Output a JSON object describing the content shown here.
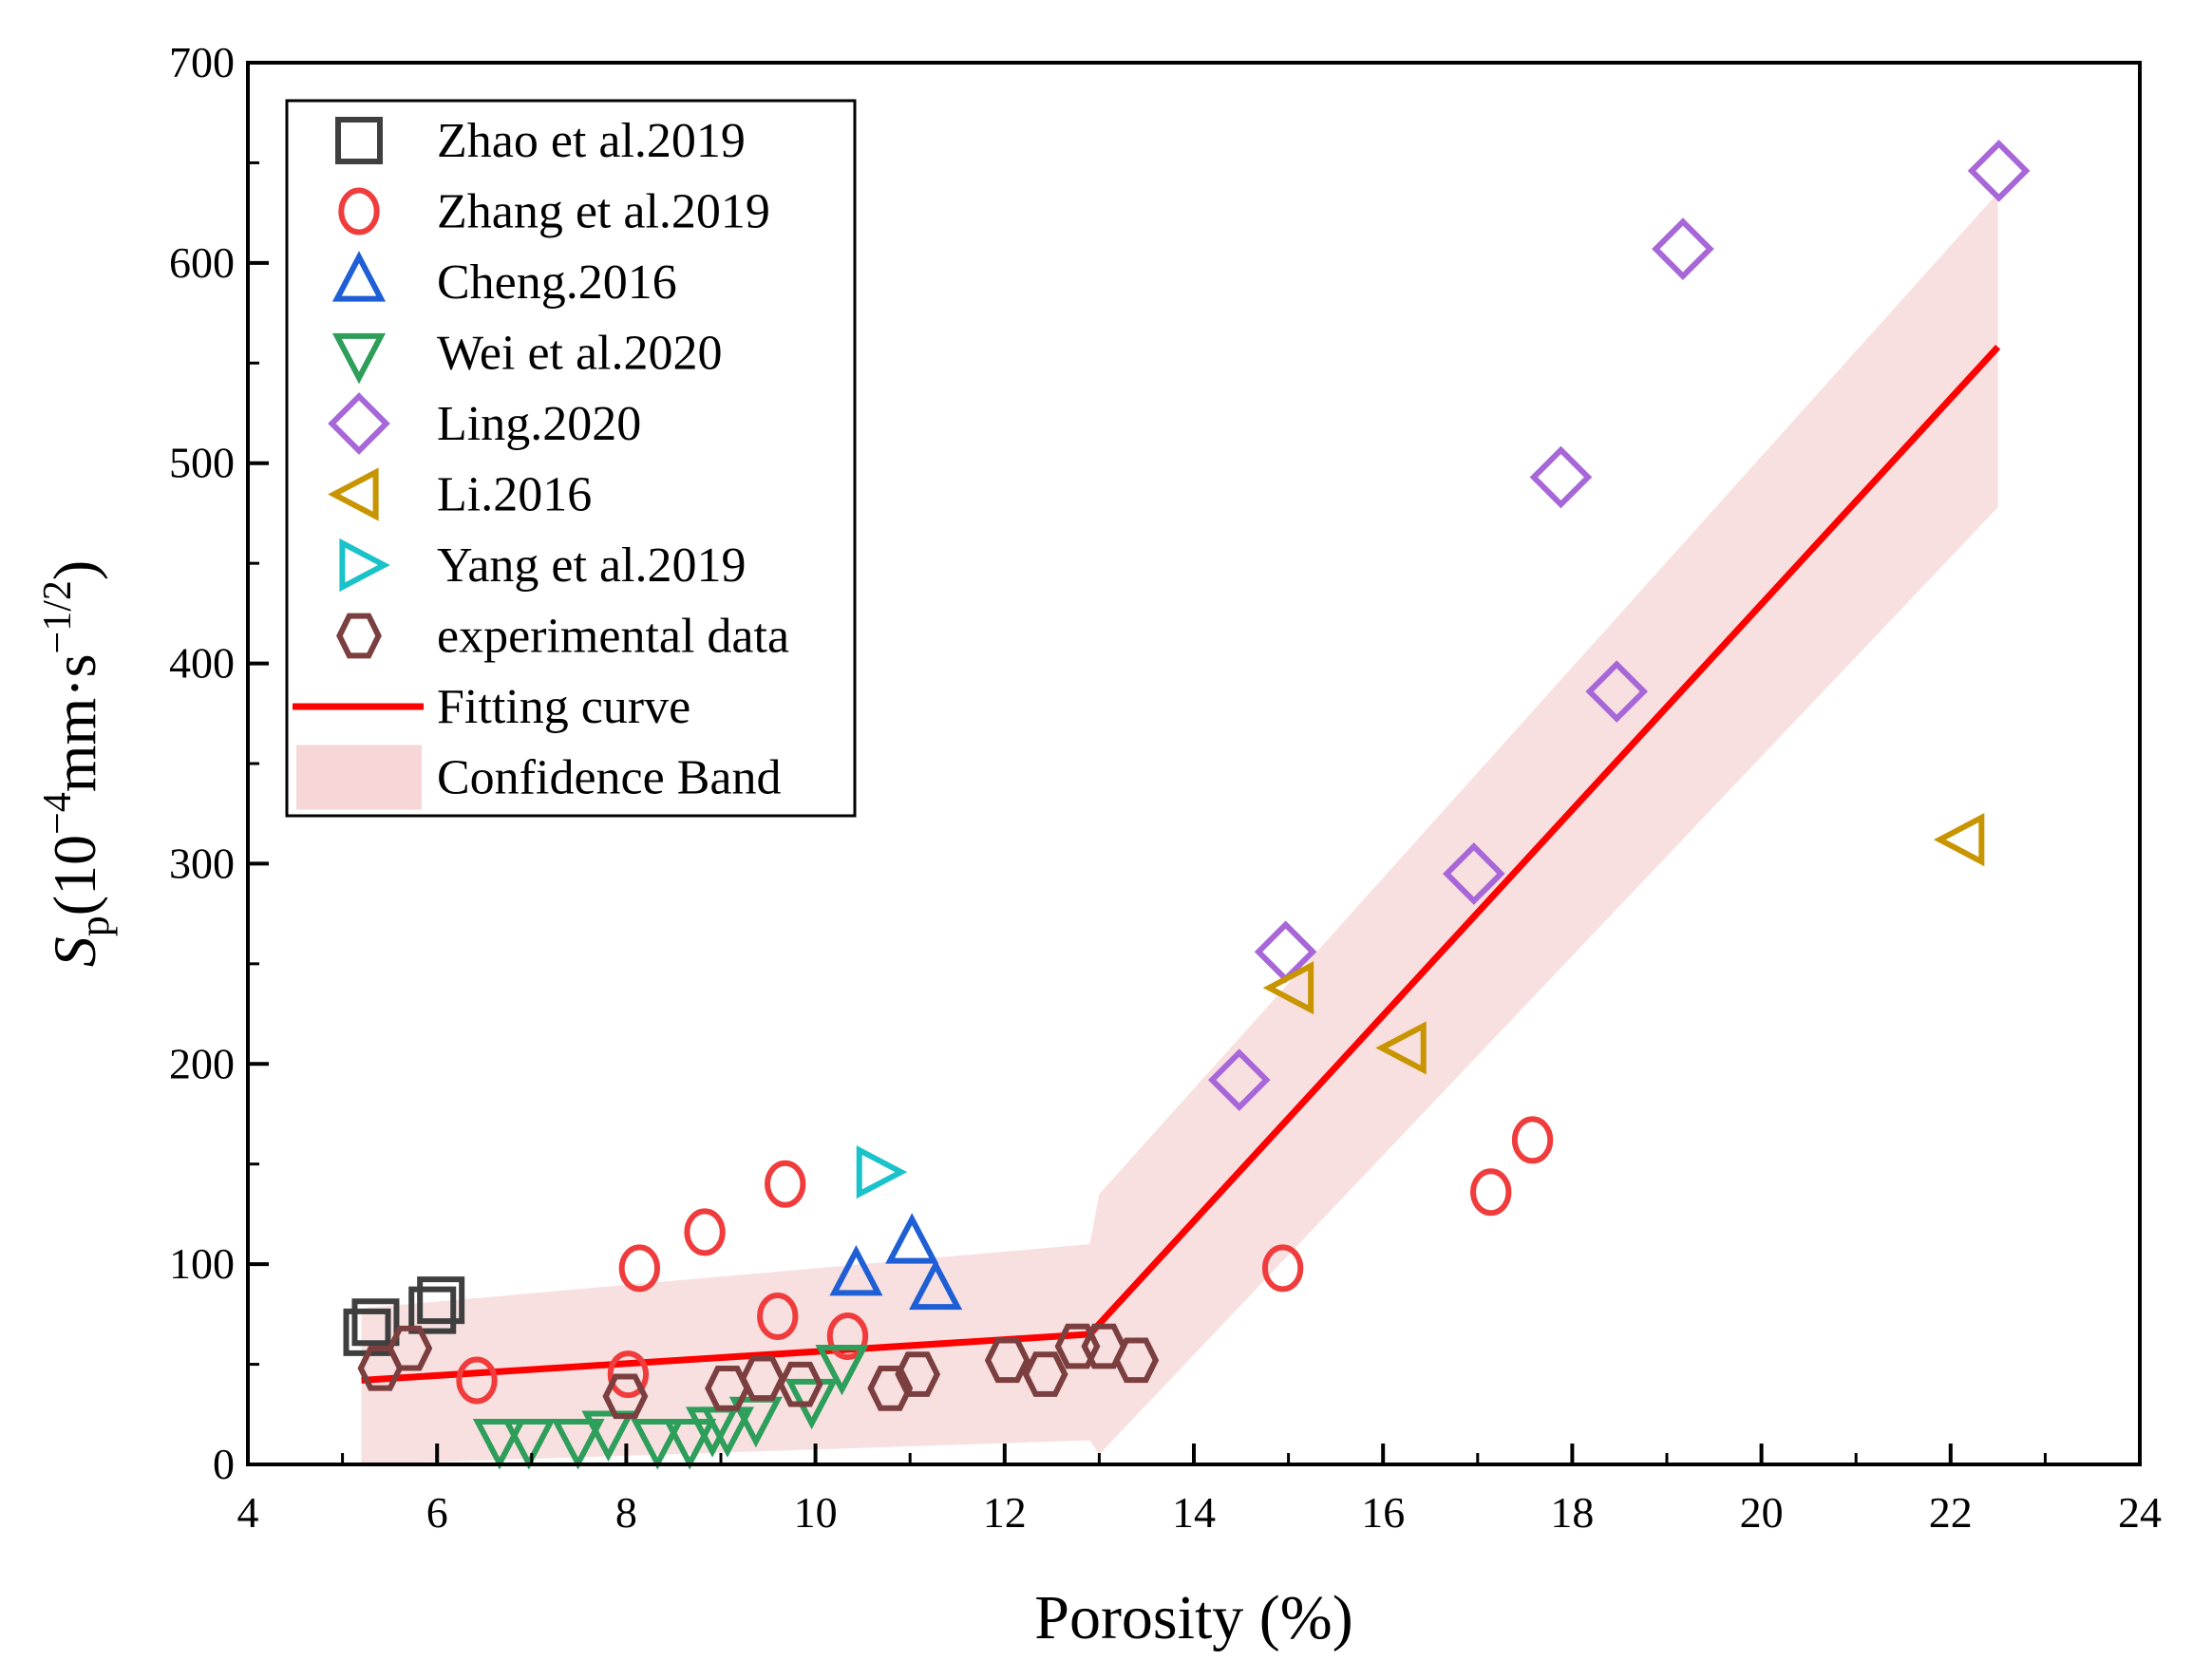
{
  "chart_data": {
    "type": "scatter",
    "title": "",
    "xlabel": "Porosity (%)",
    "ylabel_main": "S",
    "ylabel_sub": "p",
    "ylabel_unit": "(10",
    "ylabel_exp1": "−4",
    "ylabel_mid": "mm·s",
    "ylabel_exp2": "−1/2",
    "ylabel_close": ")",
    "xlim": [
      4,
      24
    ],
    "ylim": [
      0,
      700
    ],
    "xticks": [
      4,
      6,
      8,
      10,
      12,
      14,
      16,
      18,
      20,
      22,
      24
    ],
    "yticks": [
      0,
      100,
      200,
      300,
      400,
      500,
      600,
      700
    ],
    "legend_position": "top-left",
    "series": [
      {
        "name": "Zhao et al.2019",
        "marker": "square",
        "color": "#3f3f3f",
        "points": [
          [
            5.26,
            66
          ],
          [
            5.35,
            71
          ],
          [
            5.95,
            77
          ],
          [
            6.04,
            82
          ]
        ]
      },
      {
        "name": "Zhang  et al.2019",
        "marker": "circle",
        "color": "#f03c3c",
        "points": [
          [
            6.42,
            42
          ],
          [
            8.02,
            45
          ],
          [
            8.14,
            98
          ],
          [
            8.83,
            116
          ],
          [
            9.68,
            140
          ],
          [
            9.6,
            74
          ],
          [
            10.34,
            64
          ],
          [
            14.94,
            98
          ],
          [
            17.14,
            136
          ],
          [
            17.58,
            162
          ]
        ]
      },
      {
        "name": "Cheng.2016",
        "marker": "triangle-up",
        "color": "#1f5fd6",
        "points": [
          [
            10.43,
            94
          ],
          [
            11.02,
            110
          ],
          [
            11.27,
            87
          ]
        ]
      },
      {
        "name": "Wei et al.2020",
        "marker": "triangle-down",
        "color": "#2e9e5b",
        "points": [
          [
            6.66,
            13
          ],
          [
            6.97,
            13
          ],
          [
            7.49,
            13
          ],
          [
            7.81,
            17
          ],
          [
            8.33,
            13
          ],
          [
            8.67,
            13
          ],
          [
            8.91,
            19
          ],
          [
            9.07,
            19
          ],
          [
            9.37,
            24
          ],
          [
            9.96,
            33
          ],
          [
            10.28,
            50
          ]
        ]
      },
      {
        "name": "Ling.2020",
        "marker": "diamond",
        "color": "#a767d8",
        "points": [
          [
            14.48,
            192
          ],
          [
            14.97,
            256
          ],
          [
            16.96,
            295
          ],
          [
            18.47,
            386
          ],
          [
            17.88,
            493
          ],
          [
            19.17,
            607
          ],
          [
            22.51,
            646
          ]
        ]
      },
      {
        "name": "Li.2016",
        "marker": "triangle-left",
        "color": "#c89400",
        "points": [
          [
            15.06,
            238
          ],
          [
            16.25,
            208
          ],
          [
            22.15,
            312
          ]
        ]
      },
      {
        "name": "Yang et al.2019",
        "marker": "triangle-right",
        "color": "#19c3c9",
        "points": [
          [
            10.64,
            146
          ]
        ]
      },
      {
        "name": "experimental data",
        "marker": "hexagon",
        "color": "#7b3f3f",
        "points": [
          [
            5.4,
            48
          ],
          [
            5.71,
            58
          ],
          [
            7.99,
            34
          ],
          [
            9.07,
            38
          ],
          [
            9.44,
            43
          ],
          [
            9.84,
            40
          ],
          [
            10.79,
            38
          ],
          [
            11.08,
            45
          ],
          [
            12.03,
            52
          ],
          [
            12.43,
            45
          ],
          [
            12.77,
            59
          ],
          [
            13.05,
            59
          ],
          [
            13.39,
            52
          ]
        ]
      }
    ],
    "fit": {
      "name": "Fitting curve",
      "color": "#ff0000",
      "points": [
        [
          5.2,
          42
        ],
        [
          12.9,
          65
        ],
        [
          22.5,
          558
        ]
      ]
    },
    "band": {
      "name": "Confidence Band",
      "color": "#f6d6d6",
      "upper": [
        [
          5.2,
          78
        ],
        [
          12.9,
          110
        ],
        [
          13.0,
          135
        ],
        [
          22.5,
          635
        ]
      ],
      "lower": [
        [
          5.2,
          0
        ],
        [
          12.9,
          12
        ],
        [
          13.0,
          5
        ],
        [
          22.5,
          478
        ]
      ]
    }
  }
}
